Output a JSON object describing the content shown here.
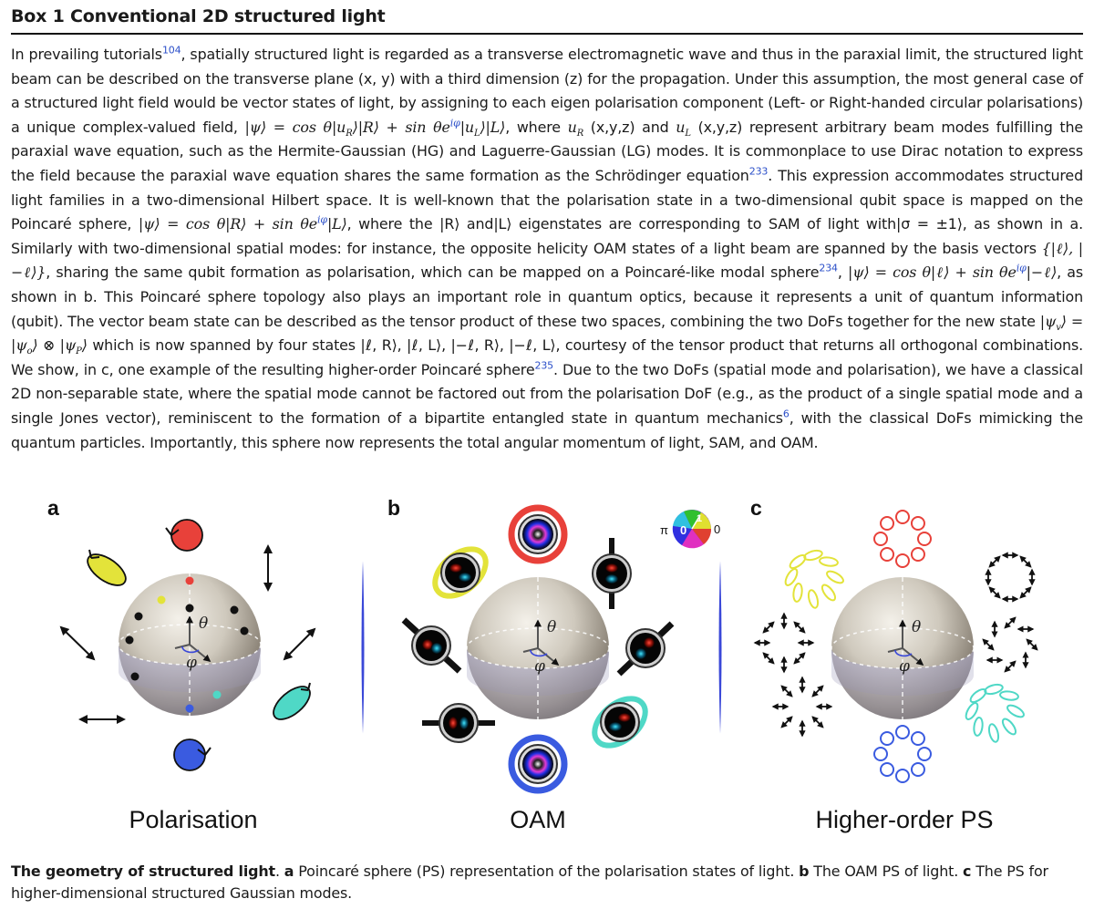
{
  "box_title": "Box 1 Conventional 2D structured light",
  "body": {
    "s01": "In prevailing tutorials",
    "r104": "104",
    "s02": ", spatially structured light is regarded as a transverse electromagnetic wave and thus in the paraxial limit, the structured light beam can be described on the transverse plane (x, y) with a third dimension (z) for the propagation. Under this assumption, the most general case of a structured light field would be vector states of light, by assigning to each eigen polarisation component (Left- or Right-handed circular polarisations) a unique complex-valued field, ",
    "eq1": "|ψ⟩ = cos θ|u",
    "eq1b": "⟩|R⟩ + sin θe",
    "eq1c": "|u",
    "eq1d": "⟩|L⟩",
    "sub_R": "R",
    "sub_L": "L",
    "sup_iphi": "iφ",
    "s03": ", where ",
    "u_R": "u",
    "s04": " (x,y,z) and ",
    "u_L": "u",
    "s05": " (x,y,z) represent arbitrary beam modes fulfilling the paraxial wave equation, such as the Hermite-Gaussian (HG) and Laguerre-Gaussian (LG) modes. It is commonplace to use Dirac notation to express the field because the paraxial wave equation shares the same formation as the Schrödinger equation",
    "r233": "233",
    "s06": ". This expression accommodates structured light families in a two-dimensional Hilbert space. It is well-known that the polarisation state in a two-dimensional qubit space is mapped on the Poincaré sphere, ",
    "eq2": "|ψ⟩ = cos θ|R⟩ + sin θe",
    "eq2b": "|L⟩",
    "s07": ", where the |R⟩ and|L⟩ eigenstates are corresponding to SAM of light with|σ = ±1⟩, as shown in a. Similarly with two-dimensional spatial modes: for instance, the opposite helicity OAM states of a light beam are spanned by the basis vectors ",
    "eq3": "{|ℓ⟩, |−ℓ⟩}",
    "s08": ", sharing the same qubit formation as polarisation, which can be mapped on a Poincaré-like modal sphere",
    "r234": "234",
    "s09": ", ",
    "eq4": "|ψ⟩ = cos θ|ℓ⟩ + sin θe",
    "eq4b": "|−ℓ⟩",
    "s10": ", as shown in b. This Poincaré sphere topology also plays an important role in quantum optics, because it represents a unit of quantum information (qubit). The vector beam state can be described as the tensor product of these two spaces, combining the two DoFs together for the new state ",
    "eq5": "|ψ",
    "eq5_sub_v": "v",
    "eq5b": "⟩ = |ψ",
    "eq5_sub_o": "o",
    "eq5c": "⟩ ⊗ |ψ",
    "eq5_sub_p": "P",
    "eq5d": "⟩",
    "s11": " which is now spanned by four states |ℓ, R⟩, |ℓ, L⟩, |−ℓ, R⟩, |−ℓ, L⟩, courtesy of the tensor product that returns all orthogonal combinations. We show, in c, one example of the resulting higher-order Poincaré sphere",
    "r235": "235",
    "s12": ". Due to the two DoFs (spatial mode and polarisation), we have a classical 2D non-separable state, where the spatial mode cannot be factored out from the polarisation DoF (e.g., as the product of a single spatial mode and a single Jones vector), reminiscent to the formation of a bipartite entangled state in quantum mechanics",
    "r6": "6",
    "s13": ", with the classical DoFs mimicking the quantum particles. Importantly, this sphere now represents the total angular momentum of light, SAM, and OAM."
  },
  "figure": {
    "panels": [
      {
        "letter": "a",
        "label": "Polarisation"
      },
      {
        "letter": "b",
        "label": "OAM"
      },
      {
        "letter": "c",
        "label": "Higher-order PS"
      }
    ],
    "axis_theta": "θ",
    "axis_phi": "φ",
    "colorwheel_pi": "π",
    "colorwheel_zero": "0",
    "colorwheel_inner_zero": "0",
    "colorwheel_one": "1",
    "colors": {
      "red": "#e8413a",
      "yellow": "#e3e33a",
      "teal": "#4fd8c6",
      "blue": "#3a5be0",
      "black": "#111111"
    }
  },
  "caption": {
    "title": "The geometry of structured light",
    "t1": ". ",
    "a": "a",
    "t2": " Poincaré sphere (PS) representation of the polarisation states of light. ",
    "b": "b",
    "t3": " The OAM PS of light. ",
    "c": "c",
    "t4": " The PS for higher-dimensional structured Gaussian modes."
  }
}
